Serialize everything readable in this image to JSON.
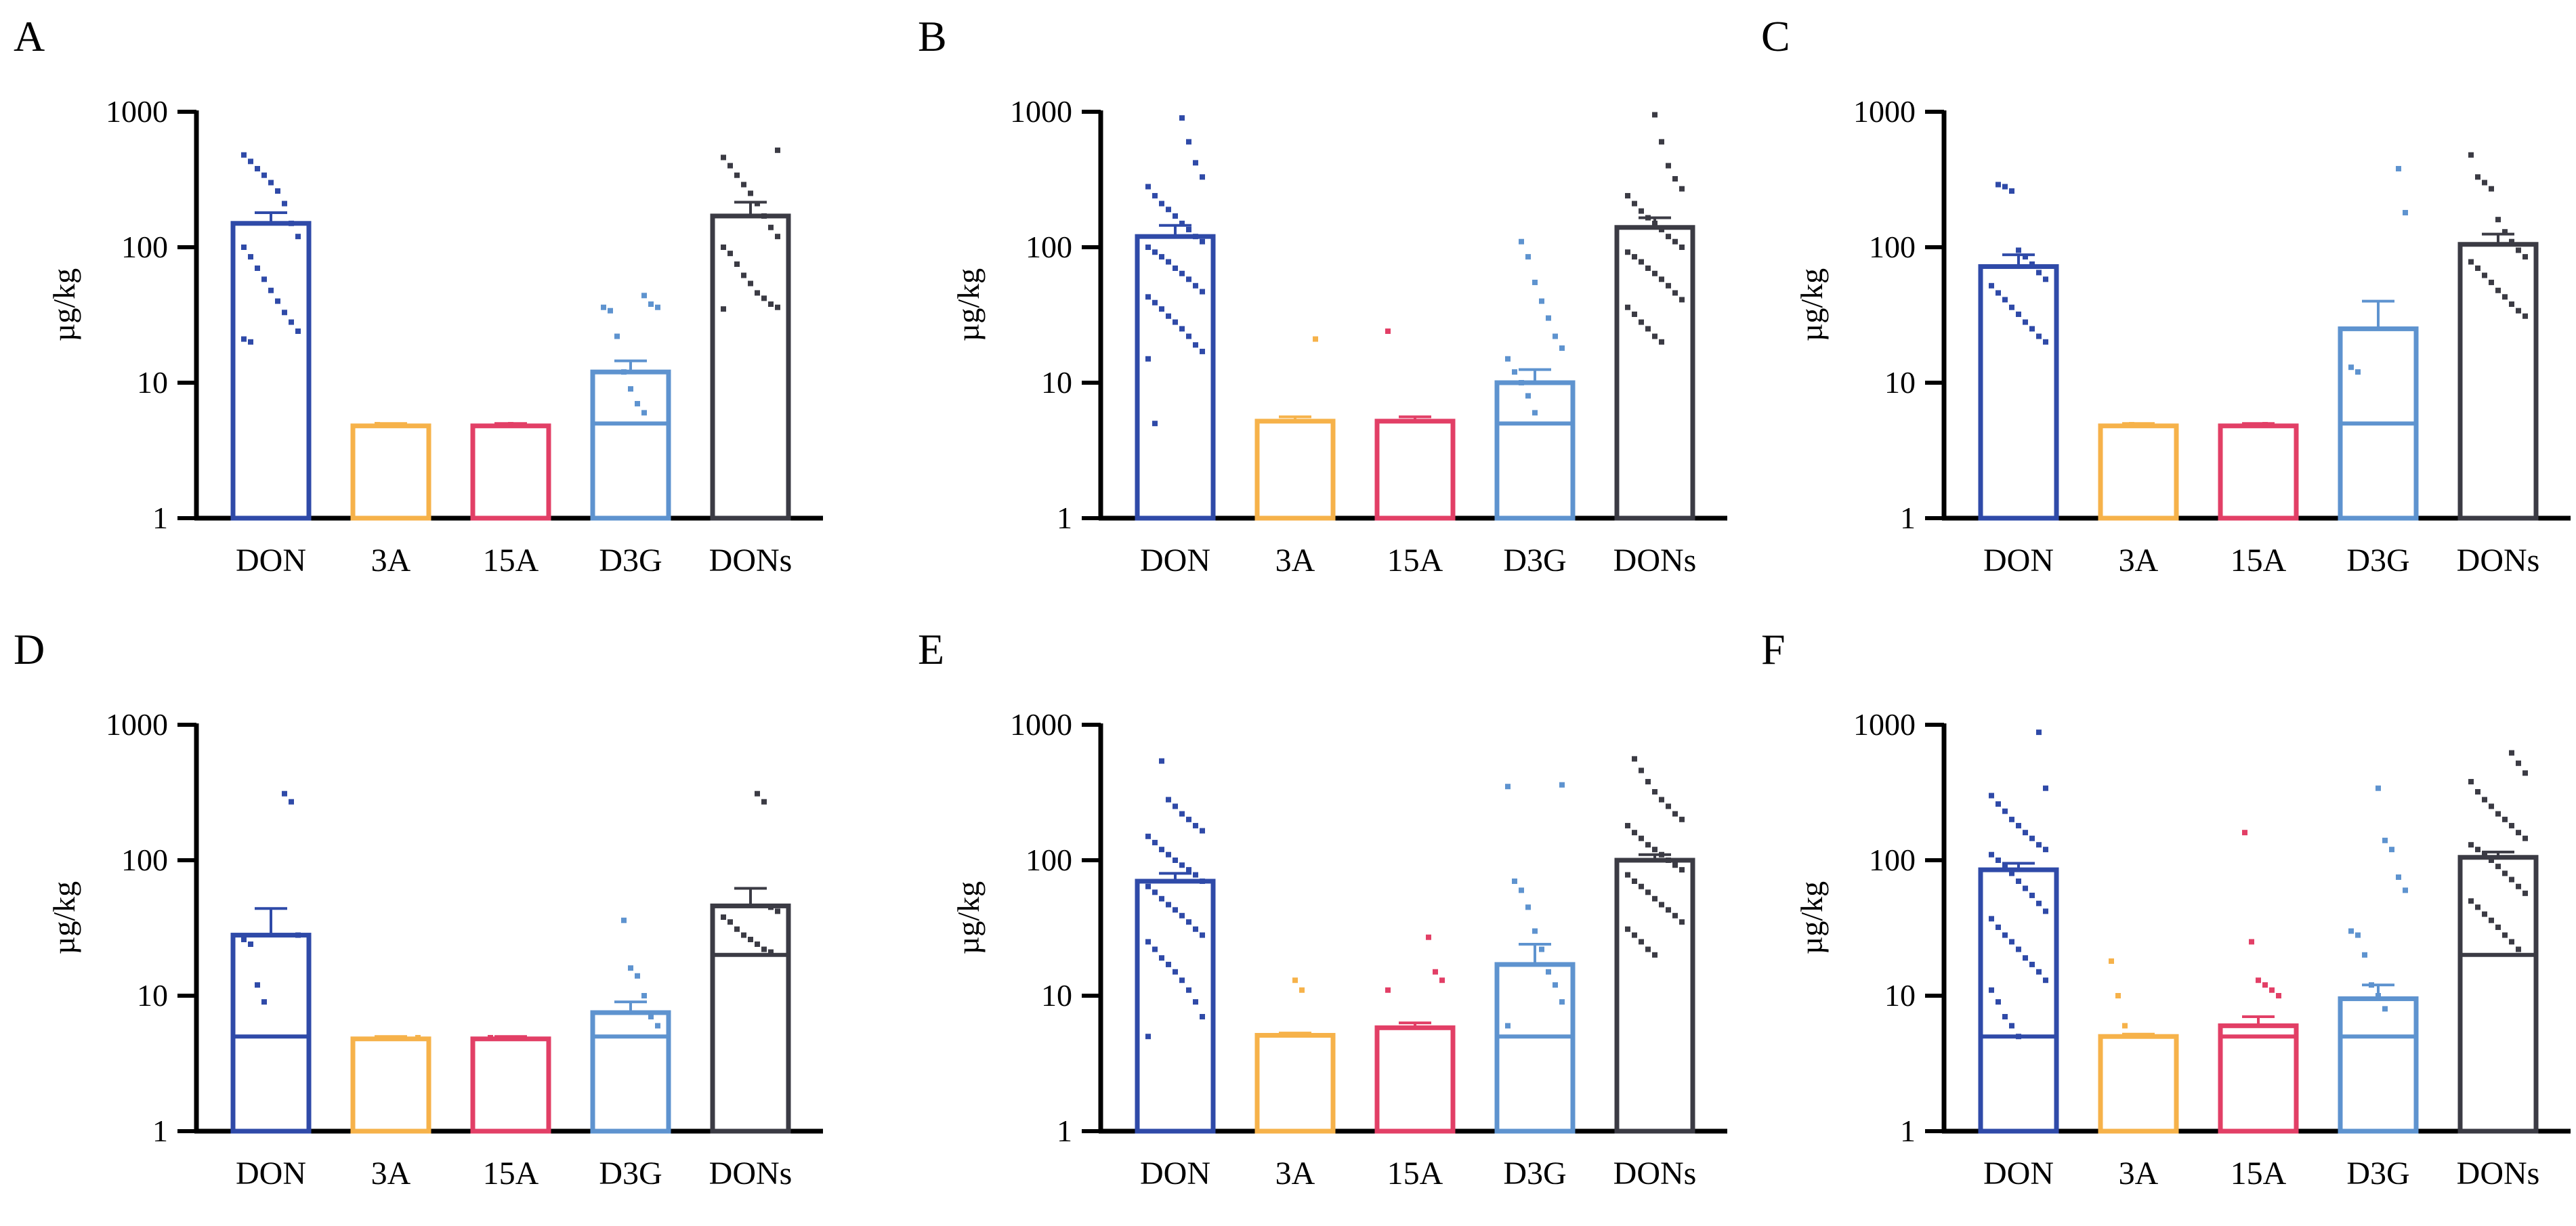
{
  "colors": {
    "DON": "#2f4aa8",
    "3A": "#f6b24a",
    "15A": "#e23f66",
    "D3G": "#5e93cf",
    "DONs": "#3b3b44"
  },
  "chart_data": [
    {
      "type": "bar",
      "panel": "A",
      "scale": "log",
      "ylabel": "µg/kg",
      "ylim": [
        1,
        1000
      ],
      "yticks": [
        "1",
        "10",
        "100",
        "1000"
      ],
      "categories": [
        "DON",
        "3A",
        "15A",
        "D3G",
        "DONs"
      ],
      "values": [
        150,
        4.8,
        4.8,
        12,
        170
      ],
      "errors": [
        180,
        5.0,
        5.0,
        14.5,
        215
      ],
      "inner_lines": [
        null,
        null,
        null,
        5,
        null
      ],
      "points": [
        [
          480,
          430,
          380,
          340,
          300,
          260,
          210,
          150,
          120,
          100,
          85,
          70,
          58,
          48,
          40,
          33,
          28,
          24,
          21,
          20
        ],
        [
          4.9
        ],
        [
          4.9
        ],
        [
          44,
          38,
          36,
          36,
          34,
          22,
          12,
          9,
          7,
          6
        ],
        [
          520,
          460,
          400,
          340,
          290,
          250,
          210,
          170,
          140,
          120,
          100,
          90,
          75,
          62,
          54,
          46,
          42,
          38,
          36,
          35
        ]
      ]
    },
    {
      "type": "bar",
      "panel": "B",
      "scale": "log",
      "ylabel": "µg/kg",
      "ylim": [
        1,
        1000
      ],
      "yticks": [
        "1",
        "10",
        "100",
        "1000"
      ],
      "categories": [
        "DON",
        "3A",
        "15A",
        "D3G",
        "DONs"
      ],
      "values": [
        120,
        5.2,
        5.2,
        10,
        140
      ],
      "errors": [
        145,
        5.6,
        5.6,
        12.5,
        165
      ],
      "inner_lines": [
        null,
        null,
        null,
        5,
        null
      ],
      "points": [
        [
          900,
          600,
          420,
          330,
          280,
          240,
          210,
          190,
          170,
          150,
          135,
          120,
          110,
          100,
          92,
          85,
          78,
          70,
          64,
          58,
          52,
          47,
          43,
          39,
          35,
          31,
          28,
          25,
          22,
          19,
          17,
          15,
          5
        ],
        [
          21
        ],
        [
          24
        ],
        [
          110,
          85,
          55,
          40,
          30,
          22,
          18,
          15,
          12,
          10,
          8,
          6
        ],
        [
          950,
          600,
          400,
          320,
          270,
          240,
          210,
          185,
          165,
          150,
          135,
          120,
          110,
          100,
          92,
          85,
          78,
          70,
          64,
          58,
          52,
          46,
          41,
          36,
          32,
          28,
          25,
          22,
          20
        ]
      ]
    },
    {
      "type": "bar",
      "panel": "C",
      "scale": "log",
      "ylabel": "µg/kg",
      "ylim": [
        1,
        1000
      ],
      "yticks": [
        "1",
        "10",
        "100",
        "1000"
      ],
      "categories": [
        "DON",
        "3A",
        "15A",
        "D3G",
        "DONs"
      ],
      "values": [
        72,
        4.8,
        4.8,
        25,
        105
      ],
      "errors": [
        88,
        5.0,
        5.0,
        40,
        125
      ],
      "inner_lines": [
        null,
        null,
        null,
        5,
        null
      ],
      "points": [
        [
          290,
          280,
          260,
          95,
          85,
          75,
          65,
          58,
          52,
          46,
          41,
          36,
          32,
          28,
          25,
          22,
          20
        ],
        [
          4.9
        ],
        [
          4.9
        ],
        [
          380,
          180,
          13,
          12
        ],
        [
          480,
          330,
          300,
          270,
          160,
          130,
          110,
          95,
          85,
          78,
          70,
          62,
          55,
          48,
          43,
          38,
          34,
          31
        ]
      ]
    },
    {
      "type": "bar",
      "panel": "D",
      "scale": "log",
      "ylabel": "µg/kg",
      "ylim": [
        1,
        1000
      ],
      "yticks": [
        "1",
        "10",
        "100",
        "1000"
      ],
      "categories": [
        "DON",
        "3A",
        "15A",
        "D3G",
        "DONs"
      ],
      "values": [
        28,
        4.8,
        4.8,
        7.5,
        46
      ],
      "errors": [
        44,
        5.0,
        5.0,
        9,
        62
      ],
      "inner_lines": [
        5,
        null,
        null,
        5,
        20
      ],
      "points": [
        [
          310,
          270,
          28,
          26,
          24,
          12,
          9
        ],
        [
          4.9
        ],
        [
          4.9
        ],
        [
          36,
          16,
          14,
          10,
          7,
          6
        ],
        [
          310,
          270,
          45,
          42,
          38,
          35,
          31,
          28,
          26,
          24,
          22,
          21
        ]
      ]
    },
    {
      "type": "bar",
      "panel": "E",
      "scale": "log",
      "ylabel": "µg/kg",
      "ylim": [
        1,
        1000
      ],
      "yticks": [
        "1",
        "10",
        "100",
        "1000"
      ],
      "categories": [
        "DON",
        "3A",
        "15A",
        "D3G",
        "DONs"
      ],
      "values": [
        70,
        5.1,
        5.8,
        17,
        100
      ],
      "errors": [
        80,
        5.3,
        6.3,
        24,
        110
      ],
      "inner_lines": [
        null,
        null,
        null,
        5,
        null
      ],
      "points": [
        [
          540,
          280,
          250,
          220,
          200,
          180,
          165,
          150,
          135,
          120,
          110,
          100,
          92,
          85,
          78,
          70,
          64,
          58,
          52,
          47,
          43,
          39,
          35,
          31,
          28,
          25,
          22,
          19,
          17,
          15,
          13,
          11,
          9,
          7,
          5
        ],
        [
          13,
          11
        ],
        [
          27,
          15,
          13,
          11
        ],
        [
          360,
          350,
          70,
          60,
          45,
          30,
          22,
          15,
          12,
          9,
          6
        ],
        [
          560,
          460,
          380,
          320,
          280,
          250,
          220,
          200,
          180,
          160,
          145,
          130,
          120,
          110,
          100,
          92,
          85,
          78,
          70,
          64,
          58,
          52,
          47,
          43,
          39,
          35,
          31,
          28,
          25,
          22,
          20
        ]
      ]
    },
    {
      "type": "bar",
      "panel": "F",
      "scale": "log",
      "ylabel": "µg/kg",
      "ylim": [
        1,
        1000
      ],
      "yticks": [
        "1",
        "10",
        "100",
        "1000"
      ],
      "categories": [
        "DON",
        "3A",
        "15A",
        "D3G",
        "DONs"
      ],
      "values": [
        85,
        5.0,
        6.0,
        9.5,
        105
      ],
      "errors": [
        95,
        5.2,
        7,
        12,
        115
      ],
      "inner_lines": [
        5,
        null,
        5,
        5,
        20
      ],
      "points": [
        [
          880,
          340,
          300,
          260,
          230,
          200,
          180,
          160,
          145,
          130,
          120,
          110,
          100,
          90,
          80,
          70,
          62,
          55,
          48,
          42,
          37,
          32,
          28,
          25,
          22,
          19,
          17,
          15,
          13,
          11,
          9,
          7,
          6,
          5
        ],
        [
          18,
          10,
          6
        ],
        [
          160,
          25,
          13,
          12,
          11,
          10
        ],
        [
          340,
          140,
          120,
          75,
          60,
          30,
          28,
          20,
          12,
          10,
          8
        ],
        [
          620,
          520,
          440,
          380,
          320,
          280,
          250,
          220,
          200,
          180,
          160,
          145,
          130,
          120,
          110,
          100,
          90,
          80,
          72,
          64,
          57,
          50,
          45,
          40,
          36,
          32,
          28,
          25,
          22
        ]
      ]
    }
  ]
}
